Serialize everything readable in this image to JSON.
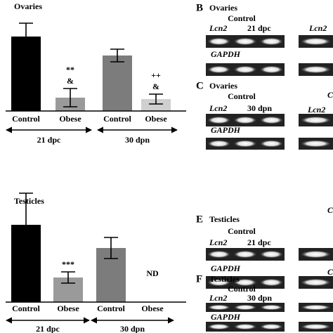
{
  "chart_data": [
    {
      "type": "bar",
      "title": "Ovaries",
      "categories": [
        "Control",
        "Obese",
        "Control",
        "Obese"
      ],
      "values": [
        106,
        19,
        79,
        17
      ],
      "errors": [
        19,
        13,
        9,
        7
      ],
      "colors": [
        "#000000",
        "#9a9a9a",
        "#7c7c7c",
        "#cfcfcf"
      ],
      "value_annotations": [
        null,
        [
          "**",
          "&"
        ],
        null,
        [
          "++",
          "&"
        ]
      ],
      "groups": [
        "21 dpc",
        "30 dpn"
      ],
      "ylim": [
        0,
        130
      ]
    },
    {
      "type": "bar",
      "title": "Testicles",
      "categories": [
        "Control",
        "Obese",
        "Control",
        "Obese"
      ],
      "values": [
        110,
        35,
        77,
        null
      ],
      "errors": [
        45,
        8,
        15,
        null
      ],
      "colors": [
        "#000000",
        "#9a9a9a",
        "#7c7c7c",
        "#cfcfcf"
      ],
      "value_annotations": [
        null,
        [
          "***"
        ],
        null,
        [
          "ND"
        ]
      ],
      "groups": [
        "21 dpc",
        "30 dpn"
      ],
      "ylim": [
        0,
        160
      ]
    }
  ],
  "panels": [
    {
      "letter": "B",
      "title": "Ovaries",
      "group": "Control",
      "gene": "Lcn2",
      "time": "21 dpc",
      "control_gene": "GAPDH",
      "cut_labels": [
        "Lcn2"
      ]
    },
    {
      "letter": "C",
      "title": "Ovaries",
      "group": "Control",
      "gene": "Lcn2",
      "time": "30 dpn",
      "control_gene": "GAPDH",
      "cut_labels": [
        "C",
        "Lcn2"
      ]
    },
    {
      "letter": "E",
      "title": "Testicles",
      "group": "Control",
      "gene": "Lcn2",
      "time": "21 dpc",
      "control_gene": "GAPDH",
      "cut_labels": [
        "C"
      ]
    },
    {
      "letter": "F",
      "title": "Testicles",
      "group": "Control",
      "gene": "Lcn2",
      "time": "30 dpn",
      "control_gene": "GAPDH",
      "cut_labels": [
        "C"
      ]
    }
  ]
}
